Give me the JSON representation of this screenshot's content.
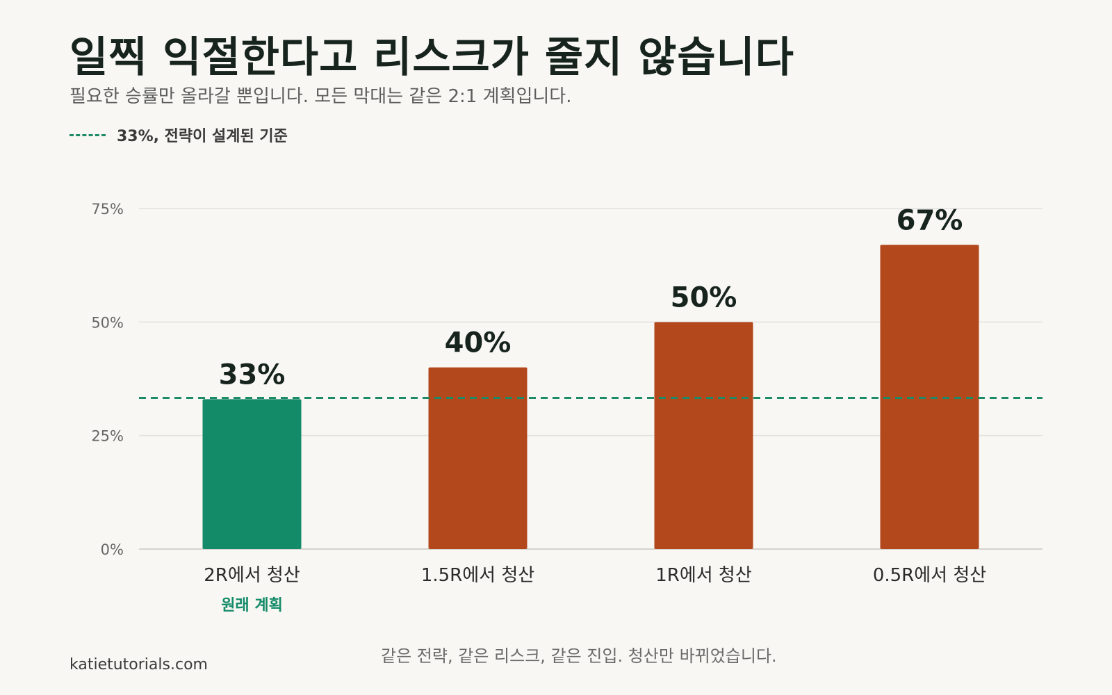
{
  "title": "일찍 익절한다고 리스크가 줄지 않습니다",
  "subtitle": "필요한 승률만 올라갈 뿐입니다. 모든 막대는 같은 2:1 계획입니다.",
  "legend": {
    "label": "33%, 전략이 설계된 기준",
    "color": "#1d8a68"
  },
  "footnote": "같은 전략, 같은 리스크, 같은 진입. 청산만 바뀌었습니다.",
  "source": "katietutorials.com",
  "colors": {
    "highlight": "#138a68",
    "bar": "#b2481c",
    "reference": "#1d8a68",
    "grid": "#e2e1dc",
    "axis": "#d4d3cd"
  },
  "chart_data": {
    "type": "bar",
    "categories": [
      "2R에서 청산",
      "1.5R에서 청산",
      "1R에서 청산",
      "0.5R에서 청산"
    ],
    "values": [
      33,
      40,
      50,
      67
    ],
    "value_labels": [
      "33%",
      "40%",
      "50%",
      "67%"
    ],
    "category_sublabels": [
      "원래 계획",
      "",
      "",
      ""
    ],
    "highlight_index": 0,
    "ylim": [
      0,
      75
    ],
    "yticks": [
      0,
      25,
      50,
      75
    ],
    "ytick_labels": [
      "0%",
      "25%",
      "50%",
      "75%"
    ],
    "reference_line": 33.3,
    "grid": true,
    "legend_position": "top-left"
  }
}
